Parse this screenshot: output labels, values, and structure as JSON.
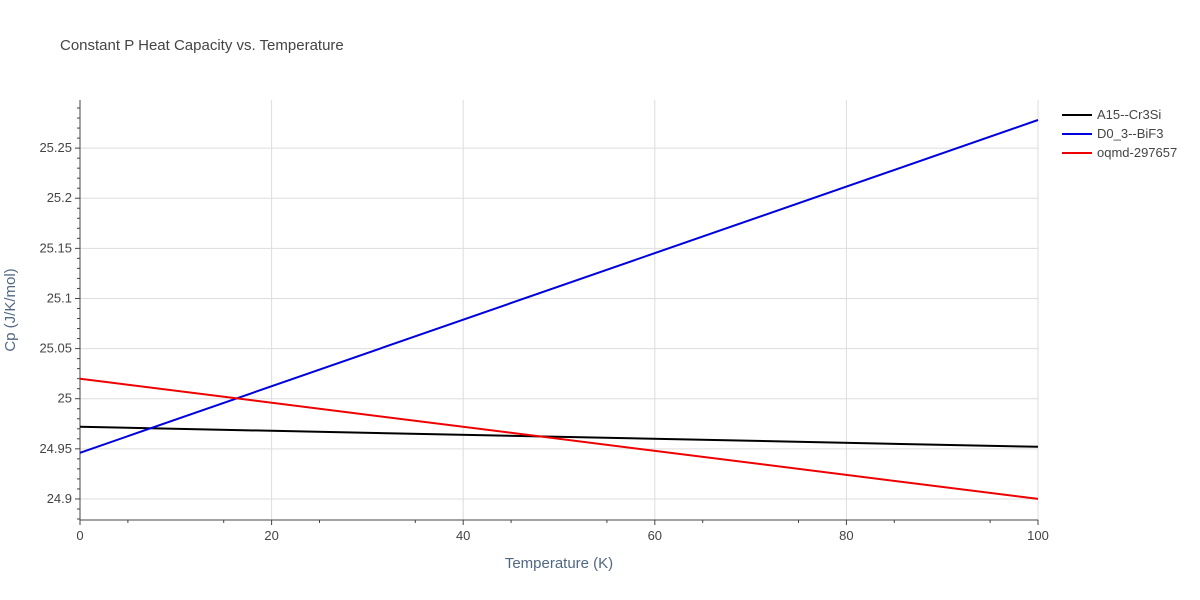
{
  "chart_data": {
    "type": "line",
    "title": "Constant P Heat Capacity vs. Temperature",
    "xlabel": "Temperature (K)",
    "ylabel": "Cp (J/K/mol)",
    "xlim": [
      0,
      100
    ],
    "ylim": [
      24.879,
      25.298
    ],
    "x_ticks": [
      0,
      20,
      40,
      60,
      80,
      100
    ],
    "y_ticks": [
      24.9,
      24.95,
      25,
      25.05,
      25.1,
      25.15,
      25.2,
      25.25
    ],
    "x_tick_labels": [
      "0",
      "20",
      "40",
      "60",
      "80",
      "100"
    ],
    "y_tick_labels": [
      "24.9",
      "24.95",
      "25",
      "25.05",
      "25.1",
      "25.15",
      "25.2",
      "25.25"
    ],
    "grid": true,
    "legend_position": "top-right",
    "series": [
      {
        "name": "A15--Cr3Si",
        "color": "#000000",
        "x": [
          0,
          100
        ],
        "y": [
          24.972,
          24.952
        ]
      },
      {
        "name": "D0_3--BiF3",
        "color": "#0000dd",
        "x": [
          0,
          100
        ],
        "y": [
          24.946,
          25.278
        ]
      },
      {
        "name": "oqmd-297657",
        "color": "#ee0000",
        "x": [
          0,
          100
        ],
        "y": [
          25.02,
          24.9
        ]
      }
    ]
  }
}
